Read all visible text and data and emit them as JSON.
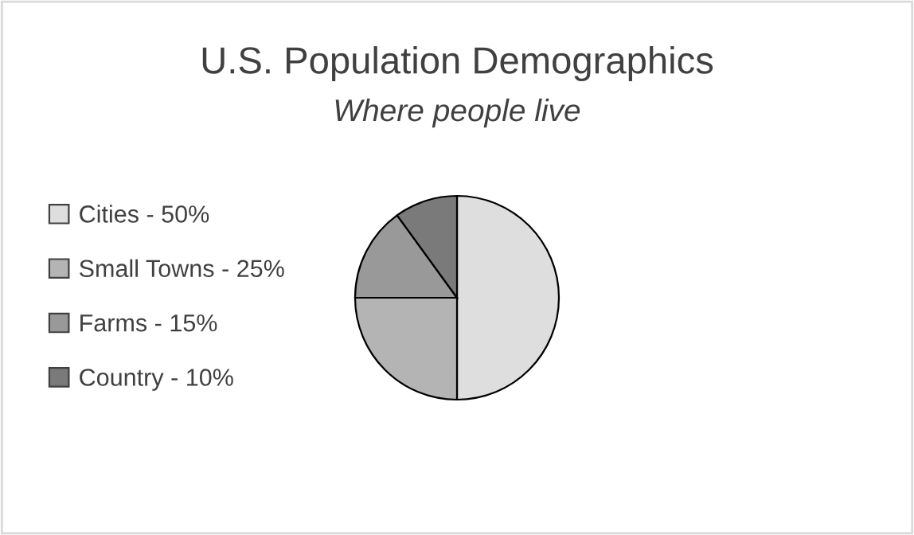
{
  "chart_data": {
    "type": "pie",
    "title": "U.S. Population Demographics",
    "subtitle": "Where people live",
    "categories": [
      "Cities - 50%",
      "Small Towns - 25%",
      "Farms - 15%",
      "Country - 10%"
    ],
    "values": [
      50,
      25,
      15,
      10
    ],
    "colors": [
      "#dedede",
      "#b4b4b4",
      "#999999",
      "#7a7a7a"
    ],
    "legend": "left"
  }
}
